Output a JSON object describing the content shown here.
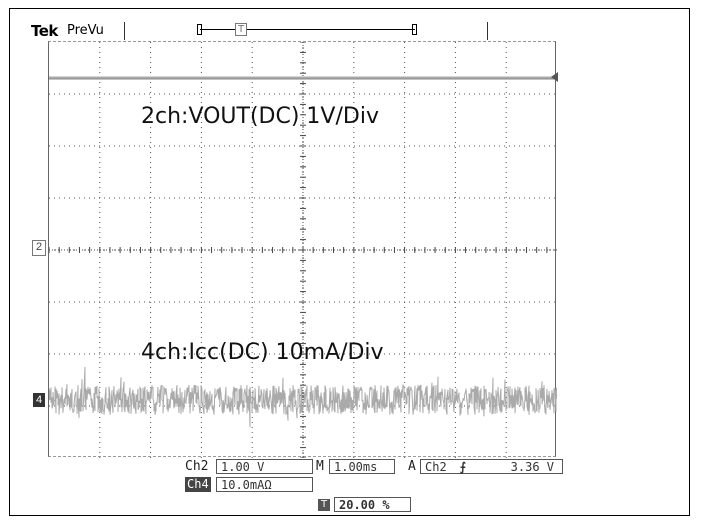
{
  "header": {
    "brand": "Tek",
    "mode": "PreVu",
    "trigger_marker": "T"
  },
  "screen": {
    "channel2_label": "2ch:VOUT(DC) 1V/Div",
    "channel4_label": "4ch:Icc(DC) 10mA/Div",
    "channel2_marker": "2",
    "channel4_marker": "4"
  },
  "status": {
    "ch2_name": "Ch2",
    "ch2_scale": "1.00 V",
    "ch4_name": "Ch4",
    "ch4_scale": "10.0mAΩ",
    "timebase_prefix": "M",
    "timebase": "1.00ms",
    "trigger_mode": "A",
    "trigger_source": "Ch2",
    "trigger_slope": "⌐",
    "trigger_level": "3.36 V",
    "trigger_position": "20.00 %"
  },
  "colors": {
    "trace": "#aaaaaa",
    "grid": "#555555"
  }
}
